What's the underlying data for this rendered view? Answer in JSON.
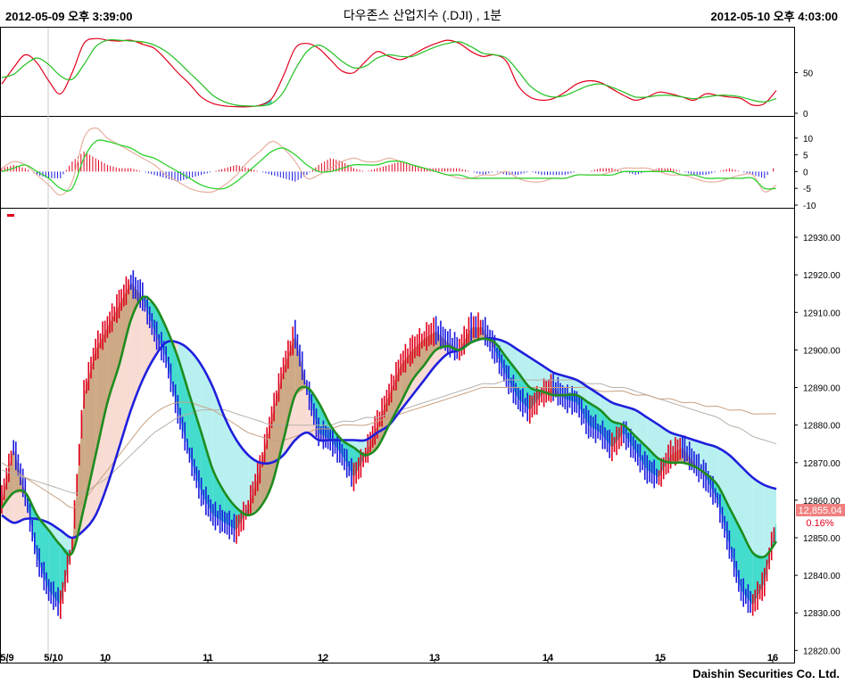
{
  "header": {
    "start_time": "2012-05-09 오후 3:39:00",
    "title": "다우존스 산업지수 (.DJI) , 1분",
    "end_time": "2012-05-10 오후 4:03:00"
  },
  "footer": {
    "brand": "Daishin Securities Co. Ltd."
  },
  "colors": {
    "up": "#e0001c",
    "down": "#1a1adf",
    "fast_ma": "#1e8c1e",
    "slow_ma": "#1f1fdc",
    "long_ma_1": "#c8a080",
    "long_ma_2": "#b0b0b0",
    "fill_up": "#c8a078",
    "fill_down": "#30d8c8",
    "cloud_up": "#f8dcd4",
    "cloud_down": "#b8f0f0",
    "price_tag": "#f08080"
  },
  "chart_data": [
    {
      "name": "stochastic-panel",
      "type": "line",
      "ylim": [
        0,
        100
      ],
      "yticks": [
        "0",
        "50"
      ],
      "series": [
        {
          "color": "#e0001c",
          "values": [
            36,
            56,
            72,
            62,
            40,
            24,
            50,
            86,
            92,
            90,
            89,
            90,
            85,
            80,
            66,
            50,
            36,
            20,
            12,
            9,
            8,
            8,
            10,
            18,
            46,
            80,
            86,
            80,
            66,
            52,
            50,
            64,
            76,
            70,
            66,
            72,
            80,
            86,
            90,
            86,
            76,
            70,
            72,
            64,
            34,
            20,
            16,
            18,
            26,
            36,
            40,
            38,
            30,
            22,
            16,
            20,
            26,
            24,
            20,
            16,
            24,
            22,
            20,
            18,
            10,
            12,
            28
          ]
        },
        {
          "color": "#22c022",
          "values": [
            44,
            48,
            60,
            68,
            60,
            46,
            42,
            60,
            82,
            90,
            90,
            89,
            88,
            84,
            76,
            64,
            50,
            36,
            22,
            14,
            10,
            9,
            9,
            12,
            26,
            54,
            76,
            84,
            76,
            64,
            56,
            58,
            68,
            72,
            70,
            70,
            76,
            82,
            86,
            88,
            82,
            74,
            72,
            68,
            52,
            34,
            24,
            20,
            22,
            28,
            34,
            36,
            32,
            26,
            20,
            20,
            22,
            22,
            20,
            18,
            20,
            22,
            22,
            20,
            16,
            14,
            18
          ]
        }
      ]
    },
    {
      "name": "macd-panel",
      "type": "bar",
      "ylim": [
        -10,
        15
      ],
      "yticks": [
        "10",
        "5",
        "0",
        "-5",
        "-10"
      ],
      "histogram": [
        1,
        2,
        1,
        -1,
        -2,
        -2,
        3,
        6,
        4,
        2,
        1,
        1,
        0,
        -1,
        -2,
        -3,
        -2,
        -1,
        0,
        1,
        2,
        1,
        0,
        -1,
        -2,
        -3,
        -1,
        2,
        4,
        3,
        1,
        0,
        1,
        2,
        3,
        2,
        1,
        1,
        1,
        1,
        0,
        -1,
        0,
        -1,
        -1,
        0,
        -1,
        -1,
        -1,
        0,
        0,
        1,
        1,
        0,
        -1,
        0,
        1,
        1,
        0,
        -1,
        -1,
        0,
        1,
        0,
        -1,
        -2,
        2
      ],
      "series": [
        {
          "color": "#e8b0a0",
          "values": [
            1,
            3,
            2,
            -1,
            -4,
            -7,
            -3,
            10,
            13,
            10,
            8,
            6,
            4,
            2,
            -1,
            -3,
            -5,
            -6,
            -6,
            -4,
            -1,
            3,
            6,
            9,
            7,
            3,
            -2,
            -1,
            1,
            3,
            4,
            3,
            3,
            4,
            3,
            2,
            1,
            0,
            -1,
            -2,
            -2,
            -1,
            -1,
            0,
            -2,
            -3,
            -3,
            -2,
            -2,
            -1,
            -1,
            -1,
            0,
            1,
            1,
            1,
            0,
            -1,
            -1,
            -2,
            -3,
            -3,
            -2,
            -1,
            -1,
            -6,
            -4
          ]
        },
        {
          "color": "#20d020",
          "values": [
            0,
            1,
            2,
            0,
            -2,
            -5,
            -5,
            4,
            9,
            9,
            8,
            7,
            5,
            4,
            2,
            0,
            -2,
            -4,
            -5,
            -5,
            -3,
            0,
            3,
            6,
            7,
            5,
            2,
            0,
            0,
            1,
            2,
            2,
            2,
            3,
            3,
            2,
            1,
            0,
            -1,
            -1,
            -2,
            -2,
            -2,
            -2,
            -2,
            -2,
            -2,
            -2,
            -2,
            -1,
            -1,
            -1,
            -1,
            0,
            0,
            0,
            0,
            0,
            -1,
            -1,
            -2,
            -2,
            -2,
            -2,
            -2,
            -5,
            -5
          ]
        }
      ]
    },
    {
      "name": "price-panel",
      "type": "line",
      "ylim": [
        12817,
        12935
      ],
      "yticks": [
        "12930.00",
        "12920.00",
        "12910.00",
        "12900.00",
        "12890.00",
        "12880.00",
        "12870.00",
        "12860.00",
        "12850.00",
        "12840.00",
        "12830.00",
        "12820.00"
      ],
      "xticks": [
        "5/9",
        "5/10",
        "10",
        "11",
        "12",
        "13",
        "14",
        "15",
        "16"
      ],
      "last_price": "12,855.04",
      "last_change": "0.16%",
      "close": [
        12860,
        12874,
        12862,
        12845,
        12836,
        12832,
        12848,
        12888,
        12900,
        12906,
        12912,
        12918,
        12914,
        12905,
        12898,
        12884,
        12872,
        12862,
        12856,
        12854,
        12852,
        12858,
        12868,
        12882,
        12895,
        12904,
        12890,
        12878,
        12876,
        12872,
        12866,
        12872,
        12880,
        12888,
        12896,
        12900,
        12903,
        12905,
        12902,
        12900,
        12906,
        12906,
        12900,
        12893,
        12887,
        12884,
        12888,
        12890,
        12887,
        12886,
        12880,
        12878,
        12874,
        12878,
        12873,
        12868,
        12866,
        12872,
        12874,
        12870,
        12866,
        12860,
        12848,
        12836,
        12832,
        12838,
        12854
      ],
      "series": [
        {
          "color": "#1e8c1e",
          "values": [
            12858,
            12862,
            12862,
            12856,
            12852,
            12848,
            12846,
            12858,
            12872,
            12886,
            12896,
            12908,
            12914,
            12912,
            12906,
            12898,
            12888,
            12878,
            12868,
            12862,
            12858,
            12856,
            12858,
            12864,
            12876,
            12888,
            12890,
            12886,
            12880,
            12876,
            12874,
            12872,
            12874,
            12880,
            12886,
            12892,
            12896,
            12900,
            12901,
            12900,
            12902,
            12903,
            12902,
            12898,
            12894,
            12890,
            12889,
            12888,
            12888,
            12888,
            12886,
            12884,
            12881,
            12880,
            12877,
            12874,
            12871,
            12870,
            12870,
            12869,
            12867,
            12864,
            12858,
            12852,
            12846,
            12845,
            12849
          ]
        },
        {
          "color": "#1f1fdc",
          "values": [
            12856,
            12854,
            12855,
            12855,
            12854,
            12852,
            12850,
            12852,
            12856,
            12864,
            12874,
            12884,
            12892,
            12898,
            12902,
            12902,
            12900,
            12896,
            12890,
            12882,
            12876,
            12872,
            12870,
            12870,
            12872,
            12876,
            12878,
            12876,
            12876,
            12876,
            12876,
            12876,
            12878,
            12880,
            12884,
            12888,
            12892,
            12896,
            12899,
            12900,
            12902,
            12903,
            12903,
            12902,
            12900,
            12898,
            12896,
            12894,
            12893,
            12892,
            12890,
            12888,
            12886,
            12885,
            12884,
            12882,
            12880,
            12878,
            12877,
            12876,
            12875,
            12874,
            12872,
            12869,
            12866,
            12864,
            12863
          ]
        },
        {
          "color": "#c8a080",
          "values": [
            12870,
            12868,
            12866,
            12864,
            12862,
            12860,
            12858,
            12860,
            12864,
            12868,
            12872,
            12876,
            12880,
            12883,
            12885,
            12886,
            12886,
            12885,
            12884,
            12882,
            12880,
            12878,
            12877,
            12876,
            12876,
            12877,
            12878,
            12879,
            12879,
            12880,
            12880,
            12880,
            12881,
            12882,
            12883,
            12884,
            12885,
            12886,
            12887,
            12888,
            12889,
            12890,
            12890,
            12890,
            12890,
            12890,
            12890,
            12890,
            12890,
            12890,
            12890,
            12889,
            12889,
            12889,
            12888,
            12888,
            12887,
            12887,
            12886,
            12886,
            12885,
            12885,
            12884,
            12884,
            12883,
            12883,
            12883
          ]
        },
        {
          "color": "#b8b0a8",
          "values": [
            12868,
            12867,
            12866,
            12865,
            12864,
            12863,
            12862,
            12862,
            12864,
            12866,
            12869,
            12872,
            12875,
            12878,
            12880,
            12882,
            12883,
            12884,
            12884,
            12884,
            12883,
            12882,
            12881,
            12880,
            12880,
            12880,
            12880,
            12880,
            12880,
            12881,
            12881,
            12882,
            12882,
            12883,
            12884,
            12885,
            12886,
            12887,
            12888,
            12889,
            12890,
            12891,
            12891,
            12892,
            12892,
            12892,
            12892,
            12892,
            12892,
            12892,
            12891,
            12891,
            12890,
            12890,
            12889,
            12888,
            12887,
            12886,
            12885,
            12884,
            12883,
            12882,
            12880,
            12879,
            12877,
            12876,
            12875
          ]
        }
      ]
    }
  ]
}
